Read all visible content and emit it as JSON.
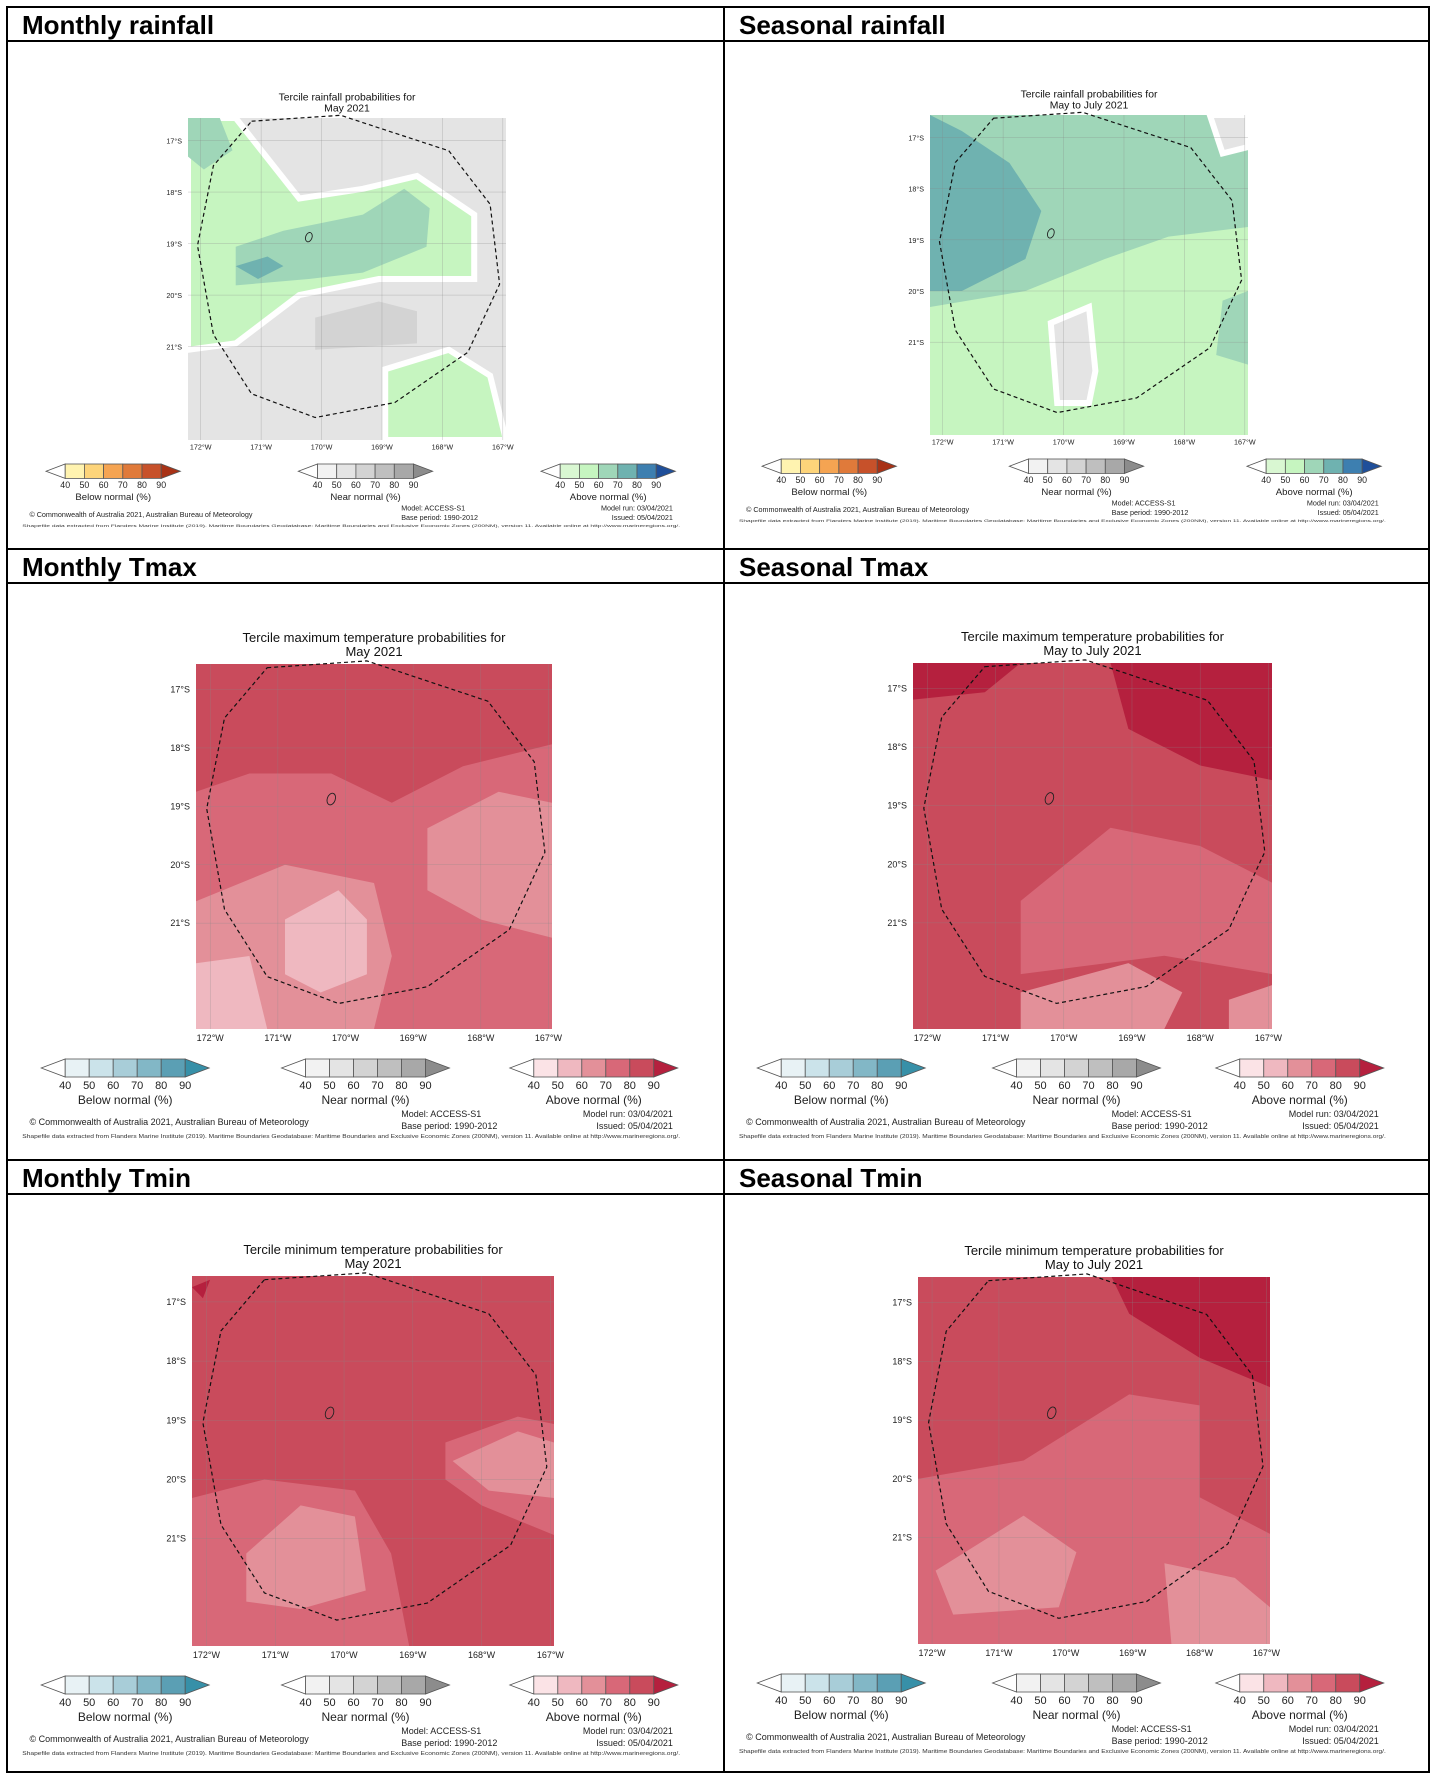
{
  "panels": [
    {
      "id": "monthly-rainfall",
      "header": "Monthly rainfall",
      "type": "rain",
      "title_line1": "Tercile rainfall probabilities for",
      "title_line2": "May 2021"
    },
    {
      "id": "seasonal-rainfall",
      "header": "Seasonal rainfall",
      "type": "rain",
      "title_line1": "Tercile rainfall probabilities for",
      "title_line2": "May to July 2021"
    },
    {
      "id": "monthly-tmax",
      "header": "Monthly Tmax",
      "type": "temp",
      "title_line1": "Tercile maximum temperature probabilities for",
      "title_line2": "May 2021"
    },
    {
      "id": "seasonal-tmax",
      "header": "Seasonal Tmax",
      "type": "temp",
      "title_line1": "Tercile maximum temperature probabilities for",
      "title_line2": "May to July 2021"
    },
    {
      "id": "monthly-tmin",
      "header": "Monthly Tmin",
      "type": "temp",
      "title_line1": "Tercile minimum temperature probabilities for",
      "title_line2": "May 2021"
    },
    {
      "id": "seasonal-tmin",
      "header": "Seasonal Tmin",
      "type": "temp",
      "title_line1": "Tercile minimum temperature probabilities for",
      "title_line2": "May to July 2021"
    }
  ],
  "lat_labels": [
    "17°S",
    "18°S",
    "19°S",
    "20°S",
    "21°S"
  ],
  "lon_labels": [
    "172°W",
    "171°W",
    "170°W",
    "169°W",
    "168°W",
    "167°W"
  ],
  "legend_ticks": [
    "40",
    "50",
    "60",
    "70",
    "80",
    "90"
  ],
  "legend_labels": {
    "below": "Below normal (%)",
    "near": "Near normal (%)",
    "above": "Above normal (%)"
  },
  "model": "Model: ACCESS-S1",
  "model_run": "Model run: 03/04/2021",
  "base_period": "Base period: 1990-2012",
  "issued": "Issued: 05/04/2021",
  "copyright": "© Commonwealth of Australia 2021, Australian Bureau of Meteorology",
  "shapefile_note": "Shapefile data extracted from Flanders Marine Institute (2019). Maritime Boundaries Geodatabase: Maritime Boundaries and Exclusive Economic Zones (200NM), version 11. Available online at http://www.marineregions.org/.",
  "colors": {
    "rain_below": [
      "#fff3b0",
      "#fdd47a",
      "#f5a452",
      "#e07a3a",
      "#c7512a",
      "#a83216"
    ],
    "rain_near": [
      "#f2f2f2",
      "#e4e4e4",
      "#d3d3d3",
      "#bfbfbf",
      "#a8a8a8",
      "#8c8c8c"
    ],
    "rain_above": [
      "#d9f7d2",
      "#c6f5c0",
      "#9fd6b8",
      "#6fb2b0",
      "#3d7fb0",
      "#1f4f9a"
    ],
    "temp_below": [
      "#e8f2f5",
      "#cbe3ea",
      "#a8cdd8",
      "#82b7c6",
      "#5b9fb4",
      "#3790a8"
    ],
    "temp_near": [
      "#f2f2f2",
      "#e4e4e4",
      "#d3d3d3",
      "#bfbfbf",
      "#a8a8a8",
      "#8c8c8c"
    ],
    "temp_above": [
      "#fbe3e6",
      "#efb8c0",
      "#e39099",
      "#d86878",
      "#c94b5c",
      "#b5203e"
    ]
  }
}
